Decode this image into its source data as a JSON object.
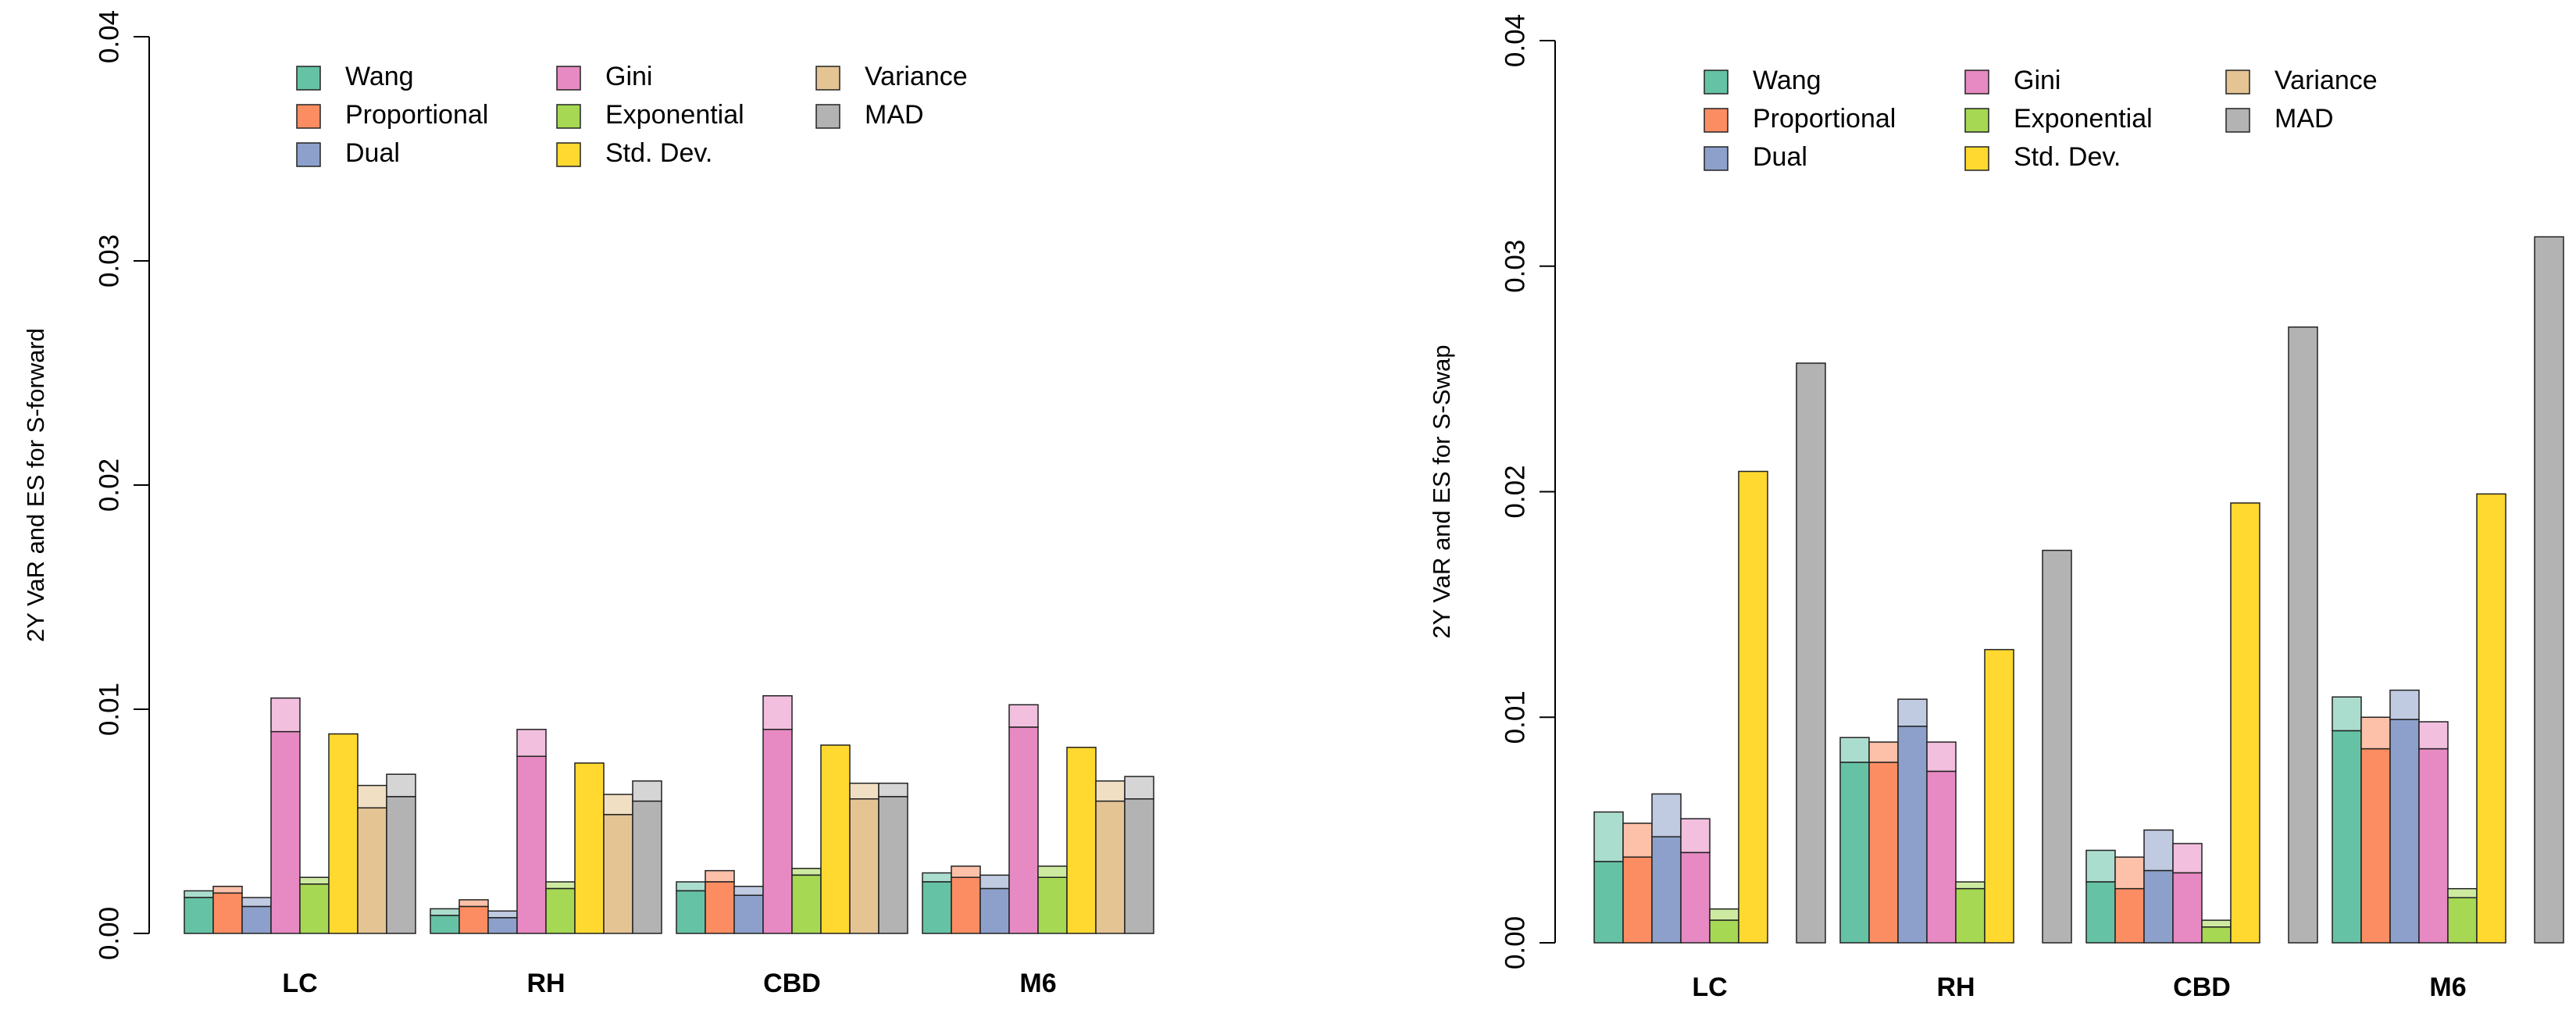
{
  "colors": {
    "Wang": "#66C2A5",
    "Proportional": "#FC8D62",
    "Dual": "#8DA0CB",
    "Gini": "#E78AC3",
    "Exponential": "#A6D854",
    "Std. Dev.": "#FFD92F",
    "Variance": "#E5C494",
    "MAD": "#B3B3B3"
  },
  "chart_data": [
    {
      "type": "bar",
      "ylabel": "2Y VaR and ES for S-forward",
      "ylim": [
        0,
        0.04
      ],
      "yticks": [
        "0.00",
        "0.01",
        "0.02",
        "0.03",
        "0.04"
      ],
      "categories": [
        "LC",
        "RH",
        "CBD",
        "M6"
      ],
      "legend": [
        "Wang",
        "Proportional",
        "Dual",
        "Gini",
        "Exponential",
        "Std. Dev.",
        "Variance",
        "MAD"
      ],
      "legend_position": "top",
      "series": [
        {
          "name": "Wang",
          "var": [
            0.0016,
            0.0008,
            0.0019,
            0.0023
          ],
          "es": [
            0.0019,
            0.0011,
            0.0023,
            0.0027
          ]
        },
        {
          "name": "Proportional",
          "var": [
            0.0018,
            0.0012,
            0.0023,
            0.0025
          ],
          "es": [
            0.0021,
            0.0015,
            0.0028,
            0.003
          ]
        },
        {
          "name": "Dual",
          "var": [
            0.0012,
            0.0007,
            0.0017,
            0.002
          ],
          "es": [
            0.0016,
            0.001,
            0.0021,
            0.0026
          ]
        },
        {
          "name": "Gini",
          "var": [
            0.009,
            0.0079,
            0.0091,
            0.0092
          ],
          "es": [
            0.0105,
            0.0091,
            0.0106,
            0.0102
          ]
        },
        {
          "name": "Exponential",
          "var": [
            0.0022,
            0.002,
            0.0026,
            0.0025
          ],
          "es": [
            0.0025,
            0.0023,
            0.0029,
            0.003
          ]
        },
        {
          "name": "Std. Dev.",
          "var": [
            0.0089,
            0.0076,
            0.0084,
            0.0083
          ],
          "es": [
            0.0089,
            0.0076,
            0.0084,
            0.0083
          ]
        },
        {
          "name": "Variance",
          "var": [
            0.0056,
            0.0053,
            0.006,
            0.0059
          ],
          "es": [
            0.0066,
            0.0062,
            0.0067,
            0.0068
          ]
        },
        {
          "name": "MAD",
          "var": [
            0.0061,
            0.0059,
            0.0061,
            0.006
          ],
          "es": [
            0.0071,
            0.0068,
            0.0067,
            0.007
          ]
        }
      ]
    },
    {
      "type": "bar",
      "ylabel": "2Y VaR and ES for S-Swap",
      "ylim": [
        0,
        0.04
      ],
      "yticks": [
        "0.00",
        "0.01",
        "0.02",
        "0.03",
        "0.04"
      ],
      "categories": [
        "LC",
        "RH",
        "CBD",
        "M6"
      ],
      "legend": [
        "Wang",
        "Proportional",
        "Dual",
        "Gini",
        "Exponential",
        "Std. Dev.",
        "Variance",
        "MAD"
      ],
      "legend_position": "top",
      "series": [
        {
          "name": "Wang",
          "var": [
            0.0036,
            0.008,
            0.0027,
            0.0094
          ],
          "es": [
            0.0058,
            0.0091,
            0.0041,
            0.0109
          ]
        },
        {
          "name": "Proportional",
          "var": [
            0.0038,
            0.008,
            0.0024,
            0.0086
          ],
          "es": [
            0.0053,
            0.0089,
            0.0038,
            0.01
          ]
        },
        {
          "name": "Dual",
          "var": [
            0.0047,
            0.0096,
            0.0032,
            0.0099
          ],
          "es": [
            0.0066,
            0.0108,
            0.005,
            0.0112
          ]
        },
        {
          "name": "Gini",
          "var": [
            0.004,
            0.0076,
            0.0031,
            0.0086
          ],
          "es": [
            0.0055,
            0.0089,
            0.0044,
            0.0098
          ]
        },
        {
          "name": "Exponential",
          "var": [
            0.001,
            0.0024,
            0.0007,
            0.002
          ],
          "es": [
            0.0015,
            0.0027,
            0.001,
            0.0024
          ]
        },
        {
          "name": "Std. Dev.",
          "var": [
            0.0209,
            0.013,
            0.0195,
            0.0199
          ],
          "es": [
            0.0209,
            0.013,
            0.0195,
            0.0199
          ]
        },
        {
          "name": "Variance",
          "var": [
            0.0,
            0.0,
            0.0,
            0.0
          ],
          "es": [
            0.0,
            0.0,
            0.0,
            0.0
          ]
        },
        {
          "name": "MAD",
          "var": [
            0.0257,
            0.0174,
            0.0273,
            0.0313
          ],
          "es": [
            0.0257,
            0.0174,
            0.0273,
            0.0313
          ]
        }
      ]
    }
  ]
}
